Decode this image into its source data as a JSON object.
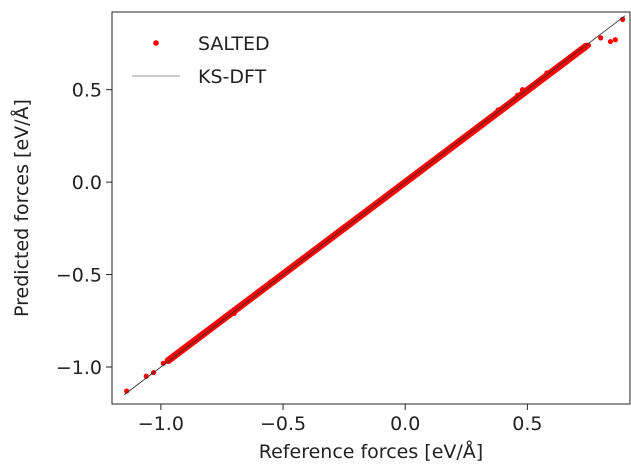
{
  "chart_data": {
    "type": "scatter",
    "title": "",
    "xlabel": "Reference forces [eV/Å]",
    "ylabel": "Predicted forces [eV/Å]",
    "xlim": [
      -1.2,
      0.92
    ],
    "ylim": [
      -1.2,
      0.92
    ],
    "xticks": [
      -1.0,
      -0.5,
      0.0,
      0.5
    ],
    "yticks": [
      -1.0,
      -0.5,
      0.0,
      0.5
    ],
    "xtick_labels": [
      "−1.0",
      "−0.5",
      "0.0",
      "0.5"
    ],
    "ytick_labels": [
      "−1.0",
      "−0.5",
      "0.0",
      "0.5"
    ],
    "grid": false,
    "legend_position": "top-left",
    "series": [
      {
        "name": "SALTED",
        "kind": "scatter",
        "color": "#ff0000",
        "x": [
          -1.14,
          -1.06,
          -1.03,
          -0.99,
          -0.95,
          -0.92,
          -0.9,
          -0.88,
          -0.86,
          -0.84,
          -0.82,
          -0.8,
          -0.78,
          -0.76,
          -0.74,
          -0.72,
          -0.7,
          -0.68,
          -0.66,
          -0.64,
          -0.62,
          -0.6,
          -0.58,
          -0.56,
          -0.54,
          -0.52,
          -0.5,
          -0.48,
          -0.46,
          -0.44,
          -0.42,
          -0.4,
          -0.38,
          -0.36,
          -0.34,
          -0.32,
          -0.3,
          -0.28,
          -0.26,
          -0.24,
          -0.22,
          -0.2,
          -0.18,
          -0.16,
          -0.14,
          -0.12,
          -0.1,
          -0.08,
          -0.06,
          -0.04,
          -0.02,
          0.0,
          0.02,
          0.04,
          0.06,
          0.08,
          0.1,
          0.12,
          0.14,
          0.16,
          0.18,
          0.2,
          0.22,
          0.24,
          0.26,
          0.28,
          0.3,
          0.32,
          0.34,
          0.36,
          0.38,
          0.4,
          0.42,
          0.44,
          0.46,
          0.48,
          0.5,
          0.52,
          0.54,
          0.56,
          0.58,
          0.6,
          0.62,
          0.64,
          0.66,
          0.68,
          0.7,
          0.72,
          0.75,
          0.8,
          0.84,
          0.86,
          0.89,
          -0.7,
          -0.55,
          0.38,
          0.48,
          0.62
        ],
        "y": [
          -1.13,
          -1.05,
          -1.03,
          -0.98,
          -0.94,
          -0.92,
          -0.9,
          -0.88,
          -0.86,
          -0.84,
          -0.82,
          -0.8,
          -0.78,
          -0.76,
          -0.74,
          -0.72,
          -0.69,
          -0.68,
          -0.66,
          -0.64,
          -0.62,
          -0.59,
          -0.58,
          -0.56,
          -0.54,
          -0.52,
          -0.5,
          -0.48,
          -0.46,
          -0.44,
          -0.42,
          -0.4,
          -0.38,
          -0.36,
          -0.34,
          -0.32,
          -0.3,
          -0.28,
          -0.26,
          -0.24,
          -0.22,
          -0.2,
          -0.18,
          -0.16,
          -0.14,
          -0.12,
          -0.1,
          -0.08,
          -0.06,
          -0.04,
          -0.02,
          0.0,
          0.02,
          0.04,
          0.06,
          0.08,
          0.1,
          0.12,
          0.14,
          0.16,
          0.18,
          0.2,
          0.22,
          0.24,
          0.26,
          0.28,
          0.3,
          0.32,
          0.34,
          0.36,
          0.38,
          0.4,
          0.42,
          0.44,
          0.47,
          0.48,
          0.5,
          0.52,
          0.54,
          0.56,
          0.59,
          0.6,
          0.62,
          0.64,
          0.66,
          0.68,
          0.7,
          0.72,
          0.74,
          0.78,
          0.76,
          0.77,
          0.88,
          -0.71,
          -0.54,
          0.39,
          0.5,
          0.61
        ]
      },
      {
        "name": "KS-DFT",
        "kind": "line",
        "color": "#333333",
        "x": [
          -1.15,
          0.9
        ],
        "y": [
          -1.15,
          0.9
        ]
      }
    ]
  }
}
